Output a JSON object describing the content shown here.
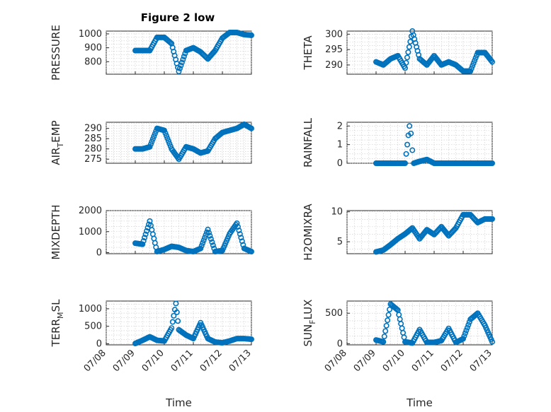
{
  "figure_title": "Figure 2 low",
  "x_ticks": [
    "07/08",
    "07/09",
    "07/10",
    "07/11",
    "07/12",
    "07/13"
  ],
  "marker_color": "#0072BD",
  "chart_data": [
    {
      "type": "scatter",
      "ylabel": "PRESSURE",
      "xlabel": "",
      "x_range": [
        "07/08",
        "07/13"
      ],
      "ylim": [
        710,
        1020
      ],
      "yticks": [
        800,
        900,
        1000
      ],
      "grid": true,
      "x": [
        9.0,
        9.25,
        9.5,
        9.75,
        10.0,
        10.25,
        10.5,
        10.75,
        11.0,
        11.25,
        11.5,
        11.75,
        12.0,
        12.25,
        12.5,
        12.75,
        13.0
      ],
      "y": [
        880,
        880,
        880,
        975,
        975,
        930,
        730,
        880,
        900,
        870,
        820,
        880,
        970,
        1010,
        1010,
        995,
        990
      ]
    },
    {
      "type": "scatter",
      "ylabel": "THETA",
      "xlabel": "",
      "x_range": [
        "07/08",
        "07/13"
      ],
      "ylim": [
        287,
        301
      ],
      "yticks": [
        290,
        295,
        300
      ],
      "grid": true,
      "x": [
        9.0,
        9.25,
        9.5,
        9.75,
        10.0,
        10.25,
        10.5,
        10.75,
        11.0,
        11.25,
        11.5,
        11.75,
        12.0,
        12.25,
        12.5,
        12.75,
        13.0
      ],
      "y": [
        291,
        290,
        292,
        293,
        289,
        301,
        292,
        290,
        293,
        290,
        291,
        290,
        288,
        288,
        294,
        294,
        291
      ]
    },
    {
      "type": "scatter",
      "ylabel": "AIR_TEMP",
      "xlabel": "",
      "x_range": [
        "07/08",
        "07/13"
      ],
      "ylim": [
        273,
        293
      ],
      "yticks": [
        275,
        280,
        285,
        290
      ],
      "grid": true,
      "x": [
        9.0,
        9.25,
        9.5,
        9.75,
        10.0,
        10.25,
        10.5,
        10.75,
        11.0,
        11.25,
        11.5,
        11.75,
        12.0,
        12.25,
        12.5,
        12.75,
        13.0
      ],
      "y": [
        280,
        280,
        281,
        290,
        289,
        280,
        275,
        281,
        280,
        278,
        279,
        285,
        288,
        289,
        290,
        292,
        290
      ]
    },
    {
      "type": "scatter",
      "ylabel": "RAINFALL",
      "xlabel": "",
      "x_range": [
        "07/08",
        "07/13"
      ],
      "ylim": [
        0,
        2.2
      ],
      "yticks": [
        0,
        1,
        2
      ],
      "grid": true,
      "x": [
        9.0,
        9.5,
        10.0,
        10.15,
        10.2,
        10.25,
        10.3,
        10.5,
        10.75,
        11.0,
        11.5,
        12.0,
        12.5,
        13.0
      ],
      "y": [
        0,
        0,
        0,
        2.0,
        1.6,
        0.7,
        0,
        0.1,
        0.2,
        0,
        0,
        0,
        0,
        0
      ]
    },
    {
      "type": "scatter",
      "ylabel": "MIXDEPTH",
      "xlabel": "",
      "x_range": [
        "07/08",
        "07/13"
      ],
      "ylim": [
        -50,
        2000
      ],
      "yticks": [
        0,
        1000,
        2000
      ],
      "grid": true,
      "x": [
        9.0,
        9.25,
        9.5,
        9.75,
        10.0,
        10.25,
        10.5,
        10.75,
        11.0,
        11.25,
        11.5,
        11.75,
        12.0,
        12.25,
        12.5,
        12.75,
        13.0
      ],
      "y": [
        450,
        400,
        1500,
        50,
        150,
        300,
        250,
        100,
        50,
        200,
        1100,
        50,
        100,
        900,
        1400,
        200,
        50
      ]
    },
    {
      "type": "scatter",
      "ylabel": "H2OMIXRA",
      "xlabel": "",
      "x_range": [
        "07/08",
        "07/13"
      ],
      "ylim": [
        3,
        10.2
      ],
      "yticks": [
        5,
        10
      ],
      "grid": true,
      "x": [
        9.0,
        9.25,
        9.5,
        9.75,
        10.0,
        10.25,
        10.5,
        10.75,
        11.0,
        11.25,
        11.5,
        11.75,
        12.0,
        12.25,
        12.5,
        12.75,
        13.0
      ],
      "y": [
        3.3,
        3.6,
        4.5,
        5.5,
        6.3,
        7.3,
        5.5,
        7.0,
        6.2,
        7.5,
        6.0,
        7.3,
        9.5,
        9.5,
        8.2,
        8.8,
        8.8
      ]
    },
    {
      "type": "scatter",
      "ylabel": "TERR_MSL",
      "xlabel": "Time",
      "x_range": [
        "07/08",
        "07/13"
      ],
      "ylim": [
        -30,
        1220
      ],
      "yticks": [
        0,
        500,
        1000
      ],
      "grid": true,
      "x": [
        9.0,
        9.25,
        9.5,
        9.75,
        10.0,
        10.25,
        10.4,
        10.5,
        10.75,
        11.0,
        11.25,
        11.5,
        11.75,
        12.0,
        12.25,
        12.5,
        12.75,
        13.0
      ],
      "y": [
        10,
        100,
        200,
        100,
        80,
        450,
        1150,
        400,
        250,
        150,
        600,
        150,
        50,
        30,
        80,
        150,
        150,
        130
      ]
    },
    {
      "type": "scatter",
      "ylabel": "SUN_FLUX",
      "xlabel": "Time",
      "x_range": [
        "07/08",
        "07/13"
      ],
      "ylim": [
        -20,
        700
      ],
      "yticks": [
        0,
        500
      ],
      "grid": true,
      "x": [
        9.0,
        9.25,
        9.5,
        9.75,
        10.0,
        10.25,
        10.5,
        10.75,
        11.0,
        11.25,
        11.5,
        11.75,
        12.0,
        12.25,
        12.5,
        12.75,
        13.0
      ],
      "y": [
        60,
        30,
        650,
        550,
        30,
        10,
        230,
        20,
        20,
        50,
        250,
        20,
        80,
        400,
        500,
        300,
        30
      ]
    }
  ]
}
